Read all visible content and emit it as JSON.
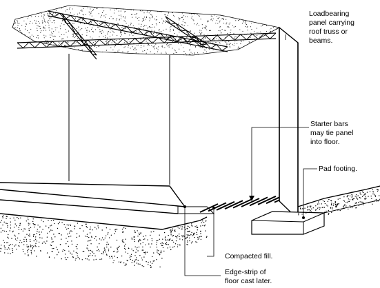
{
  "labels": {
    "panel": [
      "Loadbearing",
      "panel carrying",
      "roof truss or",
      "beams."
    ],
    "starter": [
      "Starter bars",
      "may tie panel",
      "into floor."
    ],
    "pad": [
      "Pad footing."
    ],
    "fill": [
      "Compacted fill."
    ],
    "edge": [
      "Edge-strip of",
      "floor cast later."
    ]
  }
}
